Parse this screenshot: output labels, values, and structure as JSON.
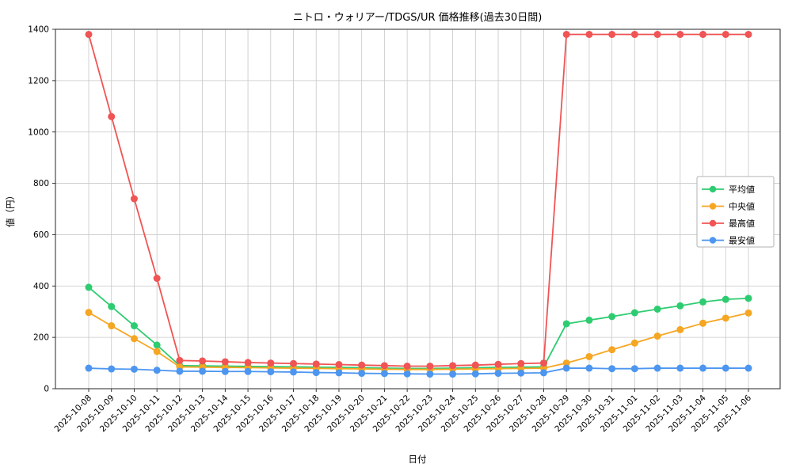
{
  "chart_data": {
    "type": "line",
    "title": "ニトロ・ウォリアー/TDGS/UR 価格推移(過去30日間)",
    "xlabel": "日付",
    "ylabel": "値（円）",
    "ylim": [
      0,
      1400
    ],
    "yticks": [
      0,
      200,
      400,
      600,
      800,
      1000,
      1200,
      1400
    ],
    "grid": true,
    "legend_position": "center-right",
    "categories": [
      "2025-10-08",
      "2025-10-09",
      "2025-10-10",
      "2025-10-11",
      "2025-10-12",
      "2025-10-13",
      "2025-10-14",
      "2025-10-15",
      "2025-10-16",
      "2025-10-17",
      "2025-10-18",
      "2025-10-19",
      "2025-10-20",
      "2025-10-21",
      "2025-10-22",
      "2025-10-23",
      "2025-10-24",
      "2025-10-25",
      "2025-10-26",
      "2025-10-27",
      "2025-10-28",
      "2025-10-29",
      "2025-10-30",
      "2025-10-31",
      "2025-11-01",
      "2025-11-02",
      "2025-11-03",
      "2025-11-04",
      "2025-11-05",
      "2025-11-06"
    ],
    "series": [
      {
        "id": "average",
        "name": "平均値",
        "color": "#2ecc71",
        "values": [
          395,
          320,
          245,
          170,
          90,
          89,
          88,
          87,
          86,
          85,
          84,
          83,
          82,
          80,
          79,
          79,
          80,
          82,
          83,
          84,
          85,
          253,
          267,
          281,
          296,
          310,
          323,
          338,
          348,
          352
        ]
      },
      {
        "id": "median",
        "name": "中央値",
        "color": "#f5a623",
        "values": [
          297,
          245,
          195,
          145,
          85,
          84,
          83,
          82,
          81,
          80,
          79,
          78,
          77,
          76,
          75,
          75,
          76,
          77,
          78,
          79,
          80,
          100,
          125,
          152,
          178,
          205,
          230,
          255,
          275,
          295
        ]
      },
      {
        "id": "highest",
        "name": "最高値",
        "color": "#f05454",
        "values": [
          1380,
          1060,
          740,
          430,
          110,
          108,
          105,
          102,
          100,
          98,
          96,
          94,
          92,
          90,
          88,
          88,
          90,
          92,
          95,
          98,
          100,
          1380,
          1380,
          1380,
          1380,
          1380,
          1380,
          1380,
          1380,
          1380
        ]
      },
      {
        "id": "lowest",
        "name": "最安値",
        "color": "#4d96f0",
        "values": [
          80,
          77,
          76,
          72,
          68,
          68,
          67,
          67,
          66,
          65,
          63,
          62,
          60,
          59,
          58,
          57,
          57,
          58,
          60,
          61,
          62,
          80,
          80,
          78,
          78,
          80,
          80,
          80,
          80,
          80
        ]
      }
    ]
  }
}
